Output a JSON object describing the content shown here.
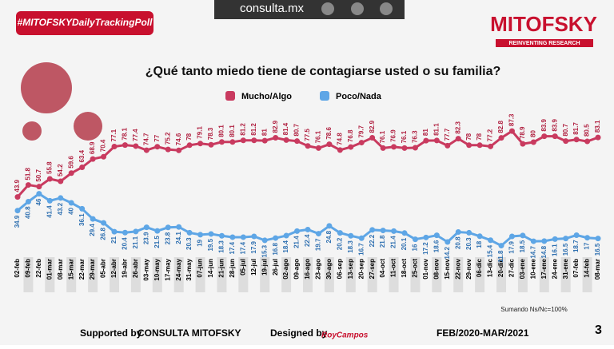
{
  "header": {
    "hashtag": "#MITOFSKYDailyTrackingPoll",
    "site": "consulta.mx",
    "brand": "MITOFSKY",
    "tagline": "REINVENTING RESEARCH"
  },
  "chart_data": {
    "type": "line",
    "title": "¿Qué tanto miedo tiene de contagiarse usted o su familia?",
    "categories": [
      "02-feb",
      "09-feb",
      "22-feb",
      "01-mar",
      "08-mar",
      "15-mar",
      "22-mar",
      "29-mar",
      "05-abr",
      "12-abr",
      "19-abr",
      "26-abr",
      "03-may",
      "10-may",
      "17-may",
      "24-may",
      "31-may",
      "07-jun",
      "14-jun",
      "21-jun",
      "28-jun",
      "05-jul",
      "12-jul",
      "19-jul",
      "26-jul",
      "02-ago",
      "09-ago",
      "16-ago",
      "23-ago",
      "30-ago",
      "06-sep",
      "13-sep",
      "20-sep",
      "27-sep",
      "04-oct",
      "11-oct",
      "18-oct",
      "25-oct",
      "01-nov",
      "08-nov",
      "15-nov",
      "22-nov",
      "29-nov",
      "06-dic",
      "13-dic",
      "20-dic",
      "27-dic",
      "03-ene",
      "10-ene",
      "17-ene",
      "24-ene",
      "31-ene",
      "07-feb",
      "14-feb",
      "08-mar"
    ],
    "ylim": [
      0,
      100
    ],
    "series": [
      {
        "name": "Mucho/Algo",
        "color": "#c93a5f",
        "values": [
          43.9,
          51.8,
          50.7,
          55.8,
          54.2,
          59.6,
          63.4,
          68.9,
          70.4,
          77.1,
          78.1,
          77.4,
          74.7,
          77.0,
          75.2,
          74.6,
          78.0,
          79.1,
          78.3,
          80.1,
          80.1,
          81.2,
          81.2,
          81.0,
          82.9,
          81.4,
          80.7,
          77.5,
          76.1,
          78.6,
          74.8,
          76.8,
          79.7,
          82.9,
          76.1,
          76.9,
          76.1,
          76.3,
          81.0,
          81.1,
          77.7,
          82.3,
          78.0,
          78.0,
          77.2,
          82.8,
          87.3,
          78.9,
          80.0,
          83.9,
          83.9,
          80.7,
          81.7,
          80.5,
          83.1
        ]
      },
      {
        "name": "Poco/Nada",
        "color": "#5ea6e6",
        "values": [
          34.9,
          40.8,
          46.0,
          41.4,
          43.2,
          40.0,
          36.1,
          29.4,
          26.8,
          21.0,
          20.4,
          21.1,
          23.9,
          21.5,
          23.8,
          24.1,
          20.3,
          19.0,
          19.5,
          18.3,
          17.4,
          17.4,
          17.9,
          15.3,
          16.8,
          18.4,
          21.4,
          22.4,
          19.7,
          24.8,
          20.2,
          18.3,
          16.7,
          22.2,
          21.8,
          21.4,
          20.1,
          16.0,
          17.2,
          18.6,
          14.2,
          20.8,
          20.3,
          18.0,
          15.4,
          11.8,
          17.9,
          18.5,
          14.7,
          14.8,
          16.1,
          16.5,
          18.7,
          17.0,
          16.5
        ]
      }
    ]
  },
  "footer": {
    "note": "Sumando Ns/Nc=100%",
    "supported": "Supported by",
    "sponsor": "CONSULTA MITOFSKY",
    "designed": "Designed by",
    "designer": "RoyCampos",
    "period": "FEB/2020-MAR/2021",
    "page": "3"
  }
}
